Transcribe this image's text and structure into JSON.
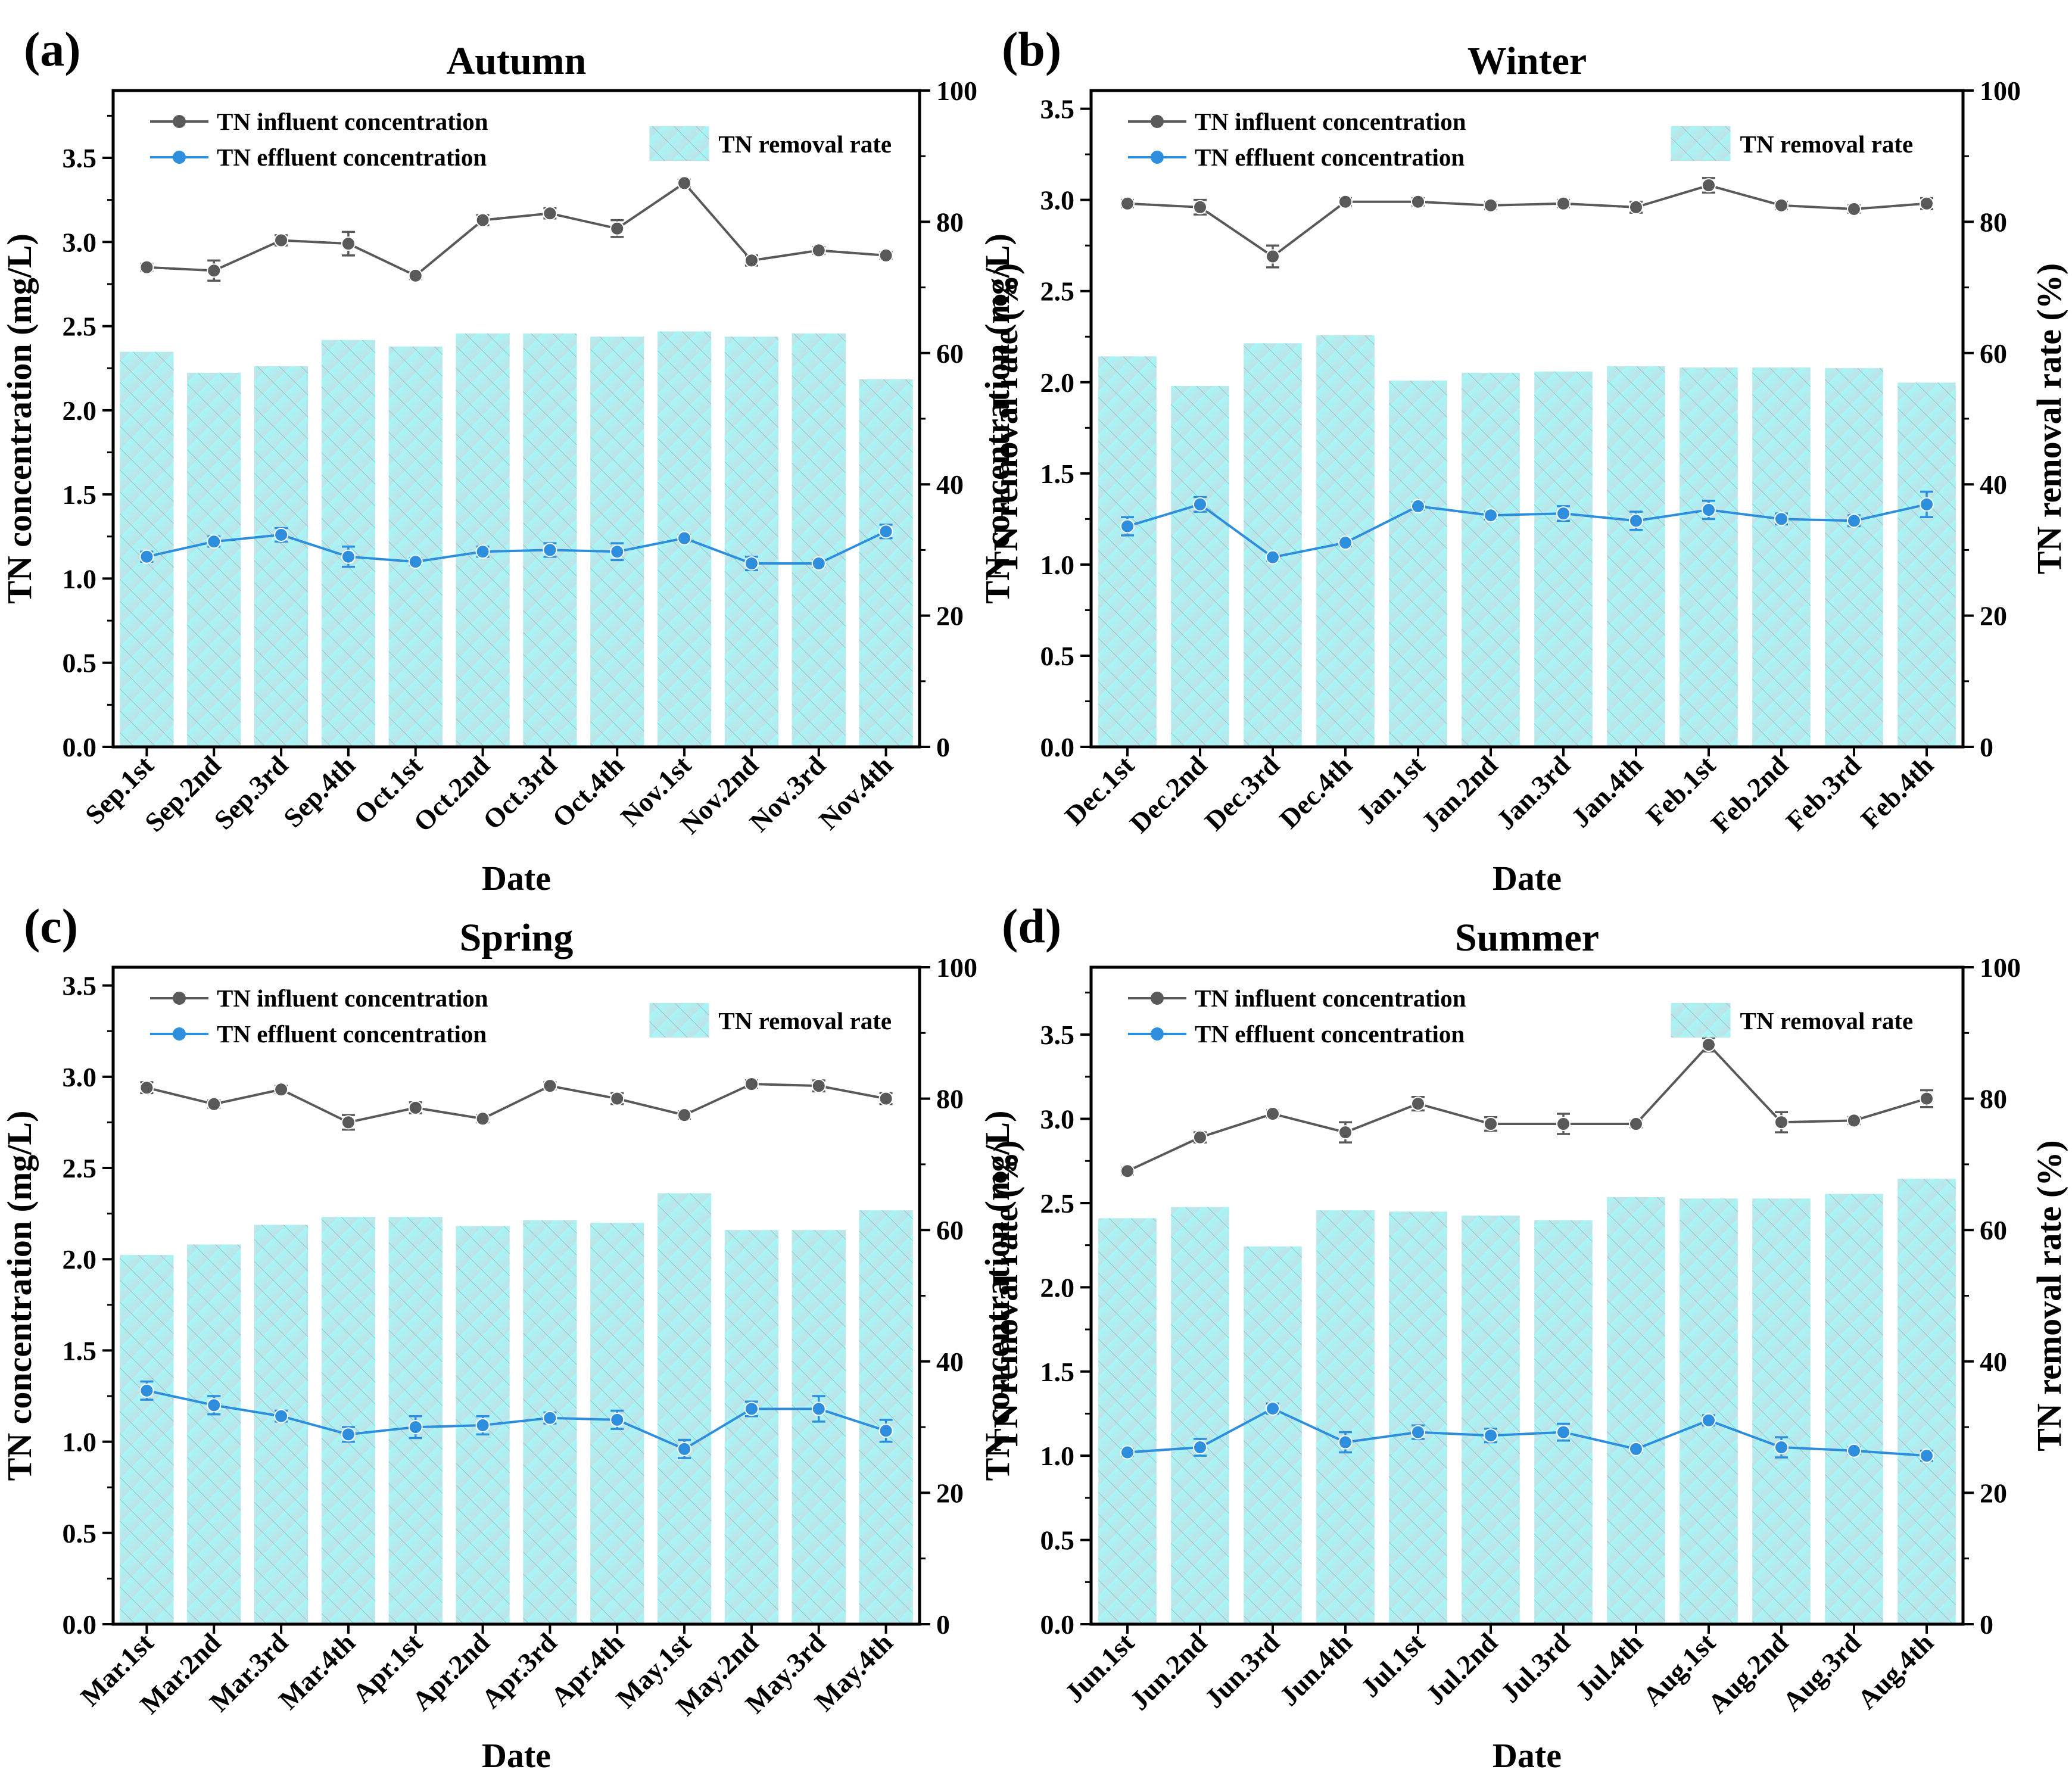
{
  "chart_data": [
    {
      "type": "bar",
      "panel_label": "(a)",
      "title": "Autumn",
      "xlabel": "Date",
      "ylabel": "TN concentration (mg/L)",
      "y2label": "TN removal rate (%)",
      "ylim": [
        0,
        3.9
      ],
      "y_ticks": [
        "0.0",
        "0.5",
        "1.0",
        "1.5",
        "2.0",
        "2.5",
        "3.0",
        "3.5"
      ],
      "y2lim": [
        0,
        100
      ],
      "y2_ticks": [
        "0",
        "20",
        "40",
        "60",
        "80",
        "100"
      ],
      "categories": [
        "Sep.1st",
        "Sep.2nd",
        "Sep.3rd",
        "Sep.4th",
        "Oct.1st",
        "Oct.2nd",
        "Oct.3rd",
        "Oct.4th",
        "Nov.1st",
        "Nov.2nd",
        "Nov.3rd",
        "Nov.4th"
      ],
      "legend": {
        "influent": "TN influent concentration",
        "effluent": "TN effluent concentration",
        "removal": "TN removal rate"
      },
      "series": [
        {
          "name": "TN removal rate",
          "kind": "bar",
          "axis": "right",
          "values": [
            60.2,
            57.0,
            58.0,
            62.0,
            61.0,
            63.0,
            63.0,
            62.5,
            63.3,
            62.5,
            63.0,
            56.0
          ]
        },
        {
          "name": "TN influent concentration",
          "kind": "line",
          "axis": "left",
          "values": [
            2.85,
            2.83,
            3.01,
            2.99,
            2.8,
            3.13,
            3.17,
            3.08,
            3.35,
            2.89,
            2.95,
            2.92
          ],
          "errors": [
            0.02,
            0.06,
            0.03,
            0.07,
            0.02,
            0.03,
            0.03,
            0.05,
            0.02,
            0.03,
            0.02,
            0.02
          ]
        },
        {
          "name": "TN effluent concentration",
          "kind": "line",
          "axis": "left",
          "values": [
            1.13,
            1.22,
            1.26,
            1.13,
            1.1,
            1.16,
            1.17,
            1.16,
            1.24,
            1.09,
            1.09,
            1.28
          ],
          "errors": [
            0.03,
            0.03,
            0.04,
            0.06,
            0.02,
            0.03,
            0.04,
            0.05,
            0.02,
            0.04,
            0.02,
            0.04
          ]
        }
      ],
      "colors": {
        "influent": "#595959",
        "effluent": "#2e8ede",
        "bar": "#9ef4f6"
      }
    },
    {
      "type": "bar",
      "panel_label": "(b)",
      "title": "Winter",
      "xlabel": "Date",
      "ylabel": "TN concentration (mg/L)",
      "y2label": "TN removal rate (%)",
      "ylim": [
        0,
        3.6
      ],
      "y_ticks": [
        "0.0",
        "0.5",
        "1.0",
        "1.5",
        "2.0",
        "2.5",
        "3.0",
        "3.5"
      ],
      "y2lim": [
        0,
        100
      ],
      "y2_ticks": [
        "0",
        "20",
        "40",
        "60",
        "80",
        "100"
      ],
      "categories": [
        "Dec.1st",
        "Dec.2nd",
        "Dec.3rd",
        "Dec.4th",
        "Jan.1st",
        "Jan.2nd",
        "Jan.3rd",
        "Jan.4th",
        "Feb.1st",
        "Feb.2nd",
        "Feb.3rd",
        "Feb.4th"
      ],
      "legend": {
        "influent": "TN influent concentration",
        "effluent": "TN effluent concentration",
        "removal": "TN removal rate"
      },
      "series": [
        {
          "name": "TN removal rate",
          "kind": "bar",
          "axis": "right",
          "values": [
            59.5,
            55.0,
            61.5,
            62.7,
            55.8,
            57.0,
            57.2,
            58.0,
            57.8,
            57.8,
            57.7,
            55.5
          ]
        },
        {
          "name": "TN influent concentration",
          "kind": "line",
          "axis": "left",
          "values": [
            2.98,
            2.96,
            2.69,
            2.99,
            2.99,
            2.97,
            2.98,
            2.96,
            3.08,
            2.97,
            2.95,
            2.98
          ],
          "errors": [
            0.02,
            0.04,
            0.06,
            0.02,
            0.02,
            0.02,
            0.02,
            0.03,
            0.04,
            0.02,
            0.02,
            0.03
          ]
        },
        {
          "name": "TN effluent concentration",
          "kind": "line",
          "axis": "left",
          "values": [
            1.21,
            1.33,
            1.04,
            1.12,
            1.32,
            1.27,
            1.28,
            1.24,
            1.3,
            1.25,
            1.24,
            1.33
          ],
          "errors": [
            0.05,
            0.04,
            0.02,
            0.02,
            0.02,
            0.02,
            0.04,
            0.05,
            0.05,
            0.03,
            0.03,
            0.07
          ]
        }
      ],
      "colors": {
        "influent": "#595959",
        "effluent": "#2e8ede",
        "bar": "#9ef4f6"
      }
    },
    {
      "type": "bar",
      "panel_label": "(c)",
      "title": "Spring",
      "xlabel": "Date",
      "ylabel": "TN concentration (mg/L)",
      "y2label": "TN removal rate (%)",
      "ylim": [
        0,
        3.6
      ],
      "y_ticks": [
        "0.0",
        "0.5",
        "1.0",
        "1.5",
        "2.0",
        "2.5",
        "3.0",
        "3.5"
      ],
      "y2lim": [
        0,
        100
      ],
      "y2_ticks": [
        "0",
        "20",
        "40",
        "60",
        "80",
        "100"
      ],
      "categories": [
        "Mar.1st",
        "Mar.2nd",
        "Mar.3rd",
        "Mar.4th",
        "Apr.1st",
        "Apr.2nd",
        "Apr.3rd",
        "Apr.4th",
        "May.1st",
        "May.2nd",
        "May.3rd",
        "May.4th"
      ],
      "legend": {
        "influent": "TN influent concentration",
        "effluent": "TN effluent concentration",
        "removal": "TN removal rate"
      },
      "series": [
        {
          "name": "TN removal rate",
          "kind": "bar",
          "axis": "right",
          "values": [
            56.2,
            57.8,
            60.8,
            62.0,
            62.0,
            60.6,
            61.5,
            61.1,
            65.6,
            60.0,
            60.0,
            63.0
          ]
        },
        {
          "name": "TN influent concentration",
          "kind": "line",
          "axis": "left",
          "values": [
            2.94,
            2.85,
            2.93,
            2.75,
            2.83,
            2.77,
            2.95,
            2.88,
            2.79,
            2.96,
            2.95,
            2.88
          ],
          "errors": [
            0.03,
            0.02,
            0.02,
            0.04,
            0.03,
            0.02,
            0.02,
            0.03,
            0.02,
            0.02,
            0.03,
            0.03
          ]
        },
        {
          "name": "TN effluent concentration",
          "kind": "line",
          "axis": "left",
          "values": [
            1.28,
            1.2,
            1.14,
            1.04,
            1.08,
            1.09,
            1.13,
            1.12,
            0.96,
            1.18,
            1.18,
            1.06
          ],
          "errors": [
            0.05,
            0.05,
            0.03,
            0.04,
            0.06,
            0.05,
            0.03,
            0.05,
            0.05,
            0.04,
            0.07,
            0.06
          ]
        }
      ],
      "colors": {
        "influent": "#595959",
        "effluent": "#2e8ede",
        "bar": "#9ef4f6"
      }
    },
    {
      "type": "bar",
      "panel_label": "(d)",
      "title": "Summer",
      "xlabel": "Date",
      "ylabel": "TN concentration (mg/L)",
      "y2label": "TN removal rate (%)",
      "ylim": [
        0,
        3.9
      ],
      "y_ticks": [
        "0.0",
        "0.5",
        "1.0",
        "1.5",
        "2.0",
        "2.5",
        "3.0",
        "3.5"
      ],
      "y2lim": [
        0,
        100
      ],
      "y2_ticks": [
        "0",
        "20",
        "40",
        "60",
        "80",
        "100"
      ],
      "categories": [
        "Jun.1st",
        "Jun.2nd",
        "Jun.3rd",
        "Jun.4th",
        "Jul.1st",
        "Jul.2nd",
        "Jul.3rd",
        "Jul.4th",
        "Aug.1st",
        "Aug.2nd",
        "Aug.3rd",
        "Aug.4th"
      ],
      "legend": {
        "influent": "TN influent concentration",
        "effluent": "TN effluent concentration",
        "removal": "TN removal rate"
      },
      "series": [
        {
          "name": "TN removal rate",
          "kind": "bar",
          "axis": "right",
          "values": [
            61.8,
            63.5,
            57.5,
            63.0,
            62.8,
            62.2,
            61.5,
            65.0,
            64.8,
            64.8,
            65.5,
            67.8
          ]
        },
        {
          "name": "TN influent concentration",
          "kind": "line",
          "axis": "left",
          "values": [
            2.69,
            2.89,
            3.03,
            2.92,
            3.09,
            2.97,
            2.97,
            2.97,
            3.44,
            2.98,
            2.99,
            3.12
          ],
          "errors": [
            0.02,
            0.03,
            0.02,
            0.06,
            0.04,
            0.04,
            0.06,
            0.02,
            0.04,
            0.06,
            0.02,
            0.05
          ]
        },
        {
          "name": "TN effluent concentration",
          "kind": "line",
          "axis": "left",
          "values": [
            1.02,
            1.05,
            1.28,
            1.08,
            1.14,
            1.12,
            1.14,
            1.04,
            1.21,
            1.05,
            1.03,
            1.0
          ],
          "errors": [
            0.02,
            0.05,
            0.03,
            0.06,
            0.04,
            0.04,
            0.05,
            0.02,
            0.03,
            0.06,
            0.02,
            0.03
          ]
        }
      ],
      "colors": {
        "influent": "#595959",
        "effluent": "#2e8ede",
        "bar": "#9ef4f6"
      }
    }
  ]
}
